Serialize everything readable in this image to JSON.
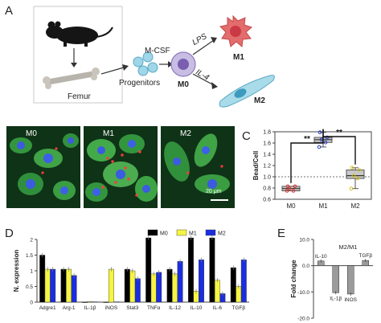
{
  "panels": {
    "a": "A",
    "b": "B",
    "c": "C",
    "d": "D",
    "e": "E"
  },
  "schematic": {
    "femur": "Femur",
    "progenitors": "Progenitors",
    "mcsf": "M-CSF",
    "m0": "M0",
    "lps": "LPS",
    "il4": "IL-4",
    "m1": "M1",
    "m2": "M2",
    "colors": {
      "m1_cell": "#e36c6c",
      "m1_nucleus": "#c93a44",
      "m2_cell": "#a9dbe9",
      "m2_nucleus": "#3f9ac0",
      "m0_cell": "#c8bde2",
      "m0_nucleus": "#7a5eb0",
      "progenitor": "#9fd6e8"
    }
  },
  "micrographs": {
    "labels": [
      "M0",
      "M1",
      "M2"
    ],
    "scalebar": "20 μm"
  },
  "chart_data": [
    {
      "id": "C",
      "type": "box",
      "ylabel": "Bead/Cell",
      "ylim": [
        0.6,
        1.8
      ],
      "yticks": [
        "0.6",
        "0.8",
        "1.0",
        "1.2",
        "1.4",
        "1.6",
        "1.8"
      ],
      "reference_line": 1.0,
      "categories": [
        "M0",
        "M1",
        "M2"
      ],
      "boxes": [
        {
          "name": "M0",
          "q1": 0.75,
          "median": 0.79,
          "q3": 0.83,
          "min": 0.75,
          "max": 0.83
        },
        {
          "name": "M1",
          "q1": 1.61,
          "median": 1.66,
          "q3": 1.7,
          "min": 1.53,
          "max": 1.79
        },
        {
          "name": "M2",
          "q1": 0.97,
          "median": 1.02,
          "q3": 1.12,
          "min": 0.79,
          "max": 1.16
        }
      ],
      "significance": [
        {
          "from": "M0",
          "to": "M1",
          "label": "**"
        },
        {
          "from": "M1",
          "to": "M2",
          "label": "**"
        }
      ],
      "colors": {
        "box": "#c9c9c9",
        "points_m0": "#e03030",
        "points_m1": "#2a3ecb",
        "points_m2": "#d4c21a"
      }
    },
    {
      "id": "D",
      "type": "bar",
      "ylabel": "N. expression",
      "ylim": [
        0,
        2.0
      ],
      "yticks": [
        "0",
        "0.5",
        "1",
        "1.5",
        "2"
      ],
      "categories": [
        "Adgre1",
        "Arg-1",
        "IL-1β",
        "iNOS",
        "Stat3",
        "TNFα",
        "IL-12",
        "IL-10",
        "IL-6",
        "TGFβ"
      ],
      "series": [
        {
          "name": "M0",
          "color": "#000000",
          "values": [
            1.5,
            1.05,
            0.0,
            0.0,
            1.05,
            2.05,
            1.05,
            2.05,
            2.05,
            1.1
          ]
        },
        {
          "name": "M1",
          "color": "#f5f542",
          "values": [
            1.05,
            1.05,
            0.02,
            1.05,
            1.0,
            0.9,
            0.9,
            0.35,
            0.7,
            0.5
          ]
        },
        {
          "name": "M2",
          "color": "#1a2ee0",
          "values": [
            1.05,
            0.85,
            0.01,
            0.01,
            0.75,
            0.95,
            1.3,
            1.35,
            0.27,
            1.35
          ]
        }
      ]
    },
    {
      "id": "E",
      "type": "bar",
      "title": "M2/M1",
      "ylabel": "Fold change",
      "ylim": [
        -20.0,
        10.0
      ],
      "yticks": [
        "10.0",
        "0.0",
        "-10.0",
        "-20.0"
      ],
      "categories": [
        "IL-10",
        "IL-1β",
        "iNOS",
        "TGFβ"
      ],
      "values": [
        1.8,
        -10.3,
        -10.8,
        2.0
      ],
      "color": "#9b9b9b"
    }
  ]
}
